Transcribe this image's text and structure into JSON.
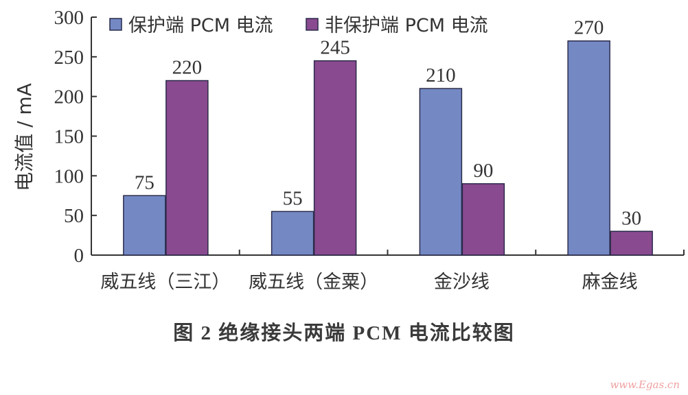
{
  "chart_data": {
    "type": "bar",
    "categories": [
      "威五线（三江）",
      "威五线（金粟）",
      "金沙线",
      "麻金线"
    ],
    "series": [
      {
        "name": "保护端 PCM 电流",
        "values": [
          75,
          55,
          210,
          270
        ],
        "color": "#7489c4"
      },
      {
        "name": "非保护端 PCM 电流",
        "values": [
          220,
          245,
          90,
          30
        ],
        "color": "#894a8f"
      }
    ],
    "ylabel": "电流值 / mA",
    "xlabel": "",
    "ylim": [
      0,
      300
    ],
    "yticks": [
      0,
      50,
      100,
      150,
      200,
      250,
      300
    ],
    "grid": false,
    "legend": "top",
    "data_labels": true
  },
  "caption": "图 2    绝缘接头两端 PCM 电流比较图",
  "watermark": "www.Egas.cn"
}
